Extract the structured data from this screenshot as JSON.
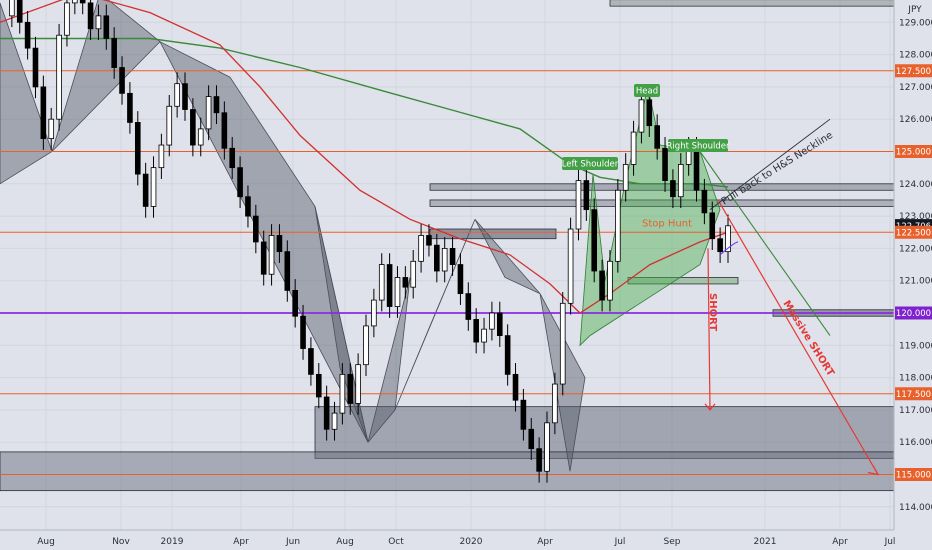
{
  "chart_data": {
    "type": "candlestick",
    "currency_label": "JPY",
    "x_tick_labels": [
      "Aug",
      "Nov",
      "2019",
      "Apr",
      "Jun",
      "Aug",
      "Oct",
      "2020",
      "Apr",
      "Jul",
      "Sep",
      "2021",
      "Apr",
      "Jul"
    ],
    "y_tick_labels": [
      114,
      115,
      116,
      117,
      118,
      119,
      120,
      121,
      122,
      123,
      124,
      125,
      126,
      127,
      128,
      129
    ],
    "ylim": [
      113.4,
      130.2
    ],
    "price_badges": [
      {
        "value": "127.500",
        "color": "#e8612c"
      },
      {
        "value": "125.000",
        "color": "#e8612c"
      },
      {
        "value": "122.706",
        "color": "#131722"
      },
      {
        "value": "122.500",
        "color": "#e8612c"
      },
      {
        "value": "120.000",
        "color": "#7e22ce"
      },
      {
        "value": "117.500",
        "color": "#e8612c"
      },
      {
        "value": "115.000",
        "color": "#e8612c"
      }
    ],
    "horizontal_levels": [
      {
        "price": 127.5,
        "color": "#e8612c"
      },
      {
        "price": 125.0,
        "color": "#e8612c"
      },
      {
        "price": 122.5,
        "color": "#e8612c"
      },
      {
        "price": 120.0,
        "color": "#8b2be2"
      },
      {
        "price": 117.5,
        "color": "#e8612c"
      },
      {
        "price": 115.0,
        "color": "#e8612c"
      }
    ],
    "annotations": {
      "head": "Head",
      "left_shoulder": "Left Shoulder",
      "right_shoulder": "Right Shoulder",
      "neckline_note": "Pull back to H&S Neckline",
      "stop_label": "Stop Hunt",
      "short_label": "SHORT",
      "massive_short_label": "Massive SHORT"
    },
    "series_approx_weekly_close": [
      129.2,
      129.8,
      129.0,
      128.2,
      127.0,
      125.4,
      126.0,
      128.6,
      129.6,
      130.0,
      129.6,
      128.8,
      129.2,
      128.5,
      127.6,
      126.8,
      125.9,
      124.3,
      123.3,
      124.5,
      125.2,
      126.4,
      127.1,
      126.3,
      125.2,
      125.7,
      126.7,
      126.2,
      125.1,
      124.5,
      123.6,
      123.0,
      122.2,
      121.2,
      122.4,
      121.9,
      120.7,
      119.9,
      118.9,
      118.1,
      117.4,
      116.4,
      116.9,
      118.1,
      117.2,
      118.4,
      119.6,
      120.4,
      121.5,
      120.2,
      121.1,
      120.8,
      121.6,
      122.4,
      122.1,
      121.3,
      122.0,
      121.5,
      120.6,
      119.8,
      119.1,
      119.5,
      120.0,
      119.3,
      118.1,
      117.3,
      116.4,
      115.8,
      115.1,
      116.6,
      117.8,
      120.3,
      122.6,
      124.1,
      123.2,
      121.3,
      120.4,
      121.6,
      123.8,
      124.6,
      125.6,
      126.6,
      125.8,
      125.1,
      124.1,
      123.6,
      124.6,
      125.1,
      123.8,
      123.1,
      122.3,
      121.9,
      122.7
    ]
  }
}
